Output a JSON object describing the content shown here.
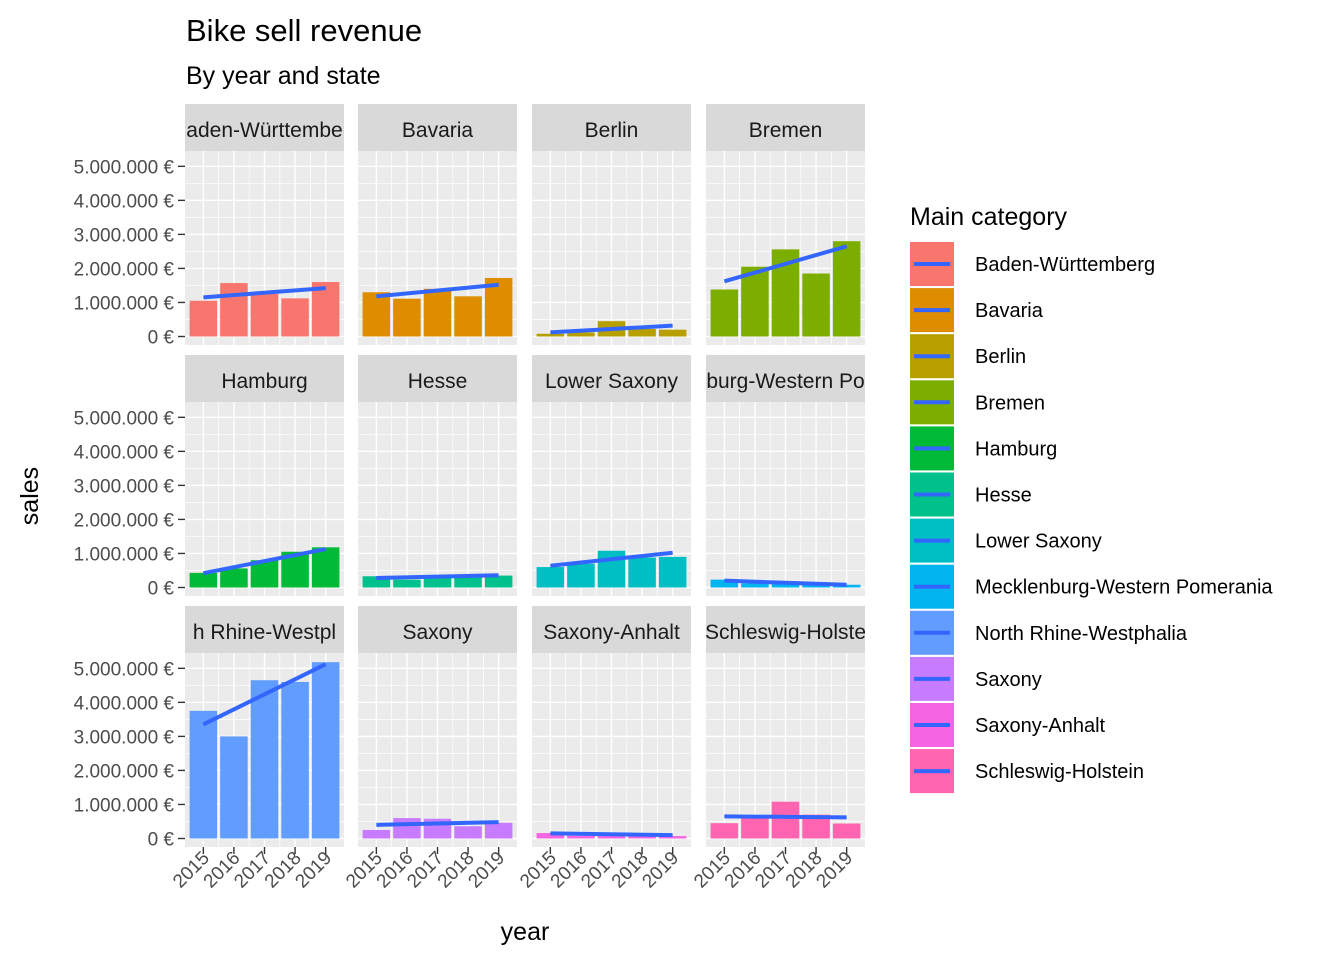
{
  "chart_data": {
    "type": "bar",
    "title": "Bike sell revenue",
    "subtitle": "By year and state",
    "xlabel": "year",
    "ylabel": "sales",
    "x": [
      "2015",
      "2016",
      "2017",
      "2018",
      "2019"
    ],
    "y_ticks": [
      "0 €",
      "1.000.000 €",
      "2.000.000 €",
      "3.000.000 €",
      "4.000.000 €",
      "5.000.000 €"
    ],
    "y_tick_values": [
      0,
      1000000,
      2000000,
      3000000,
      4000000,
      5000000
    ],
    "ylim": [
      -250000,
      5450000
    ],
    "grid": true,
    "legend": {
      "title": "Main category",
      "position": "right"
    },
    "trend_color": "#3366FF",
    "panels": [
      {
        "state": "Baden-Württemberg",
        "strip_label": "aden-Württembe",
        "color": "#F8766D",
        "values": [
          1050000,
          1570000,
          1250000,
          1120000,
          1600000
        ],
        "trend": [
          1150000,
          1420000
        ]
      },
      {
        "state": "Bavaria",
        "strip_label": "Bavaria",
        "color": "#DE8C00",
        "values": [
          1300000,
          1110000,
          1400000,
          1180000,
          1720000
        ],
        "trend": [
          1180000,
          1520000
        ]
      },
      {
        "state": "Berlin",
        "strip_label": "Berlin",
        "color": "#B79F00",
        "values": [
          80000,
          120000,
          450000,
          220000,
          200000
        ],
        "trend": [
          120000,
          320000
        ]
      },
      {
        "state": "Bremen",
        "strip_label": "Bremen",
        "color": "#7CAE00",
        "values": [
          1380000,
          2050000,
          2560000,
          1850000,
          2800000
        ],
        "trend": [
          1620000,
          2650000
        ]
      },
      {
        "state": "Hamburg",
        "strip_label": "Hamburg",
        "color": "#00BA38",
        "values": [
          430000,
          560000,
          800000,
          1050000,
          1180000
        ],
        "trend": [
          420000,
          1130000
        ]
      },
      {
        "state": "Hesse",
        "strip_label": "Hesse",
        "color": "#00C08B",
        "values": [
          330000,
          230000,
          320000,
          380000,
          350000
        ],
        "trend": [
          280000,
          360000
        ]
      },
      {
        "state": "Lower Saxony",
        "strip_label": "Lower Saxony",
        "color": "#00BFC4",
        "values": [
          600000,
          700000,
          1080000,
          880000,
          900000
        ],
        "trend": [
          640000,
          1020000
        ]
      },
      {
        "state": "Mecklenburg-Western Pomerania",
        "strip_label": "burg-Western Po",
        "color": "#00B4F0",
        "values": [
          230000,
          120000,
          180000,
          130000,
          80000
        ],
        "trend": [
          200000,
          80000
        ]
      },
      {
        "state": "North Rhine-Westphalia",
        "strip_label": "h Rhine-Westpl",
        "color": "#619CFF",
        "values": [
          3750000,
          3000000,
          4650000,
          4600000,
          5180000
        ],
        "trend": [
          3350000,
          5120000
        ]
      },
      {
        "state": "Saxony",
        "strip_label": "Saxony",
        "color": "#C77CFF",
        "values": [
          250000,
          600000,
          580000,
          360000,
          460000
        ],
        "trend": [
          400000,
          480000
        ]
      },
      {
        "state": "Saxony-Anhalt",
        "strip_label": "Saxony-Anhalt",
        "color": "#F564E3",
        "values": [
          160000,
          80000,
          130000,
          110000,
          70000
        ],
        "trend": [
          150000,
          100000
        ]
      },
      {
        "state": "Schleswig-Holstein",
        "strip_label": "Schleswig-Holste",
        "color": "#FF64B0",
        "values": [
          450000,
          650000,
          1080000,
          700000,
          440000
        ],
        "trend": [
          650000,
          620000
        ]
      }
    ]
  }
}
